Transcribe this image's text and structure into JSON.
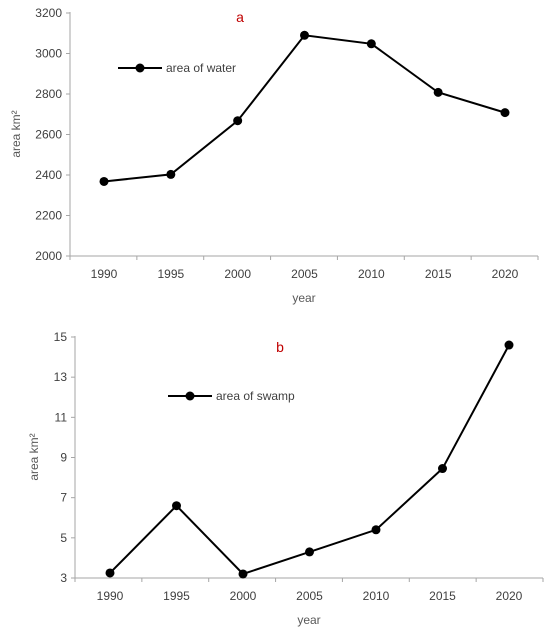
{
  "chart_data": [
    {
      "type": "line",
      "panel_label": "a",
      "xlabel": "year",
      "ylabel": "area km²",
      "categories": [
        "1990",
        "1995",
        "2000",
        "2005",
        "2010",
        "2015",
        "2020"
      ],
      "ylim": [
        2000,
        3200
      ],
      "yticks": [
        "2000",
        "2200",
        "2400",
        "2600",
        "2800",
        "3000",
        "3200"
      ],
      "series": [
        {
          "name": "area of water",
          "values": [
            2368,
            2403,
            2668,
            3090,
            3048,
            2808,
            2708
          ]
        }
      ],
      "legend_position": "top-left",
      "grid": false
    },
    {
      "type": "line",
      "panel_label": "b",
      "xlabel": "year",
      "ylabel": "area km²",
      "categories": [
        "1990",
        "1995",
        "2000",
        "2005",
        "2010",
        "2015",
        "2020"
      ],
      "ylim": [
        3,
        15
      ],
      "yticks": [
        "3",
        "5",
        "7",
        "9",
        "11",
        "13",
        "15"
      ],
      "series": [
        {
          "name": "area of swamp",
          "values": [
            3.25,
            6.6,
            3.2,
            4.3,
            5.4,
            8.45,
            14.6
          ]
        }
      ],
      "legend_position": "top-left",
      "grid": false
    }
  ],
  "colors": {
    "line": "#000000",
    "axis": "#a6a6a6",
    "panel_label": "#c00000"
  }
}
